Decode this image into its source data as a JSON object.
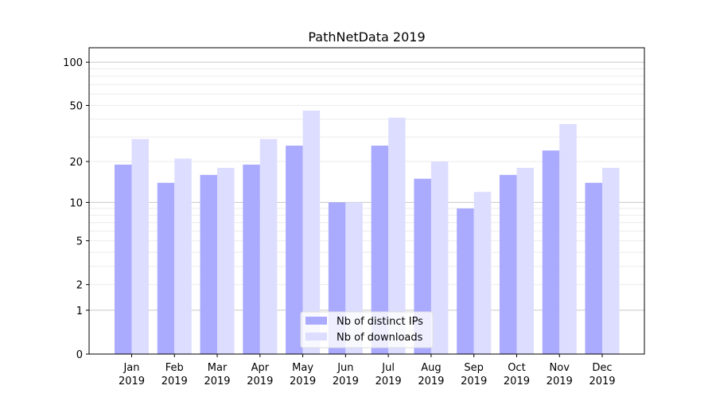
{
  "chart_data": {
    "type": "bar",
    "title": "PathNetData 2019",
    "xlabel": "",
    "ylabel": "",
    "yscale": "log(1+y)",
    "ylim": [
      0,
      126
    ],
    "yticks": [
      0,
      1,
      2,
      5,
      10,
      20,
      50,
      100
    ],
    "grid": true,
    "legend_position": "lower center",
    "categories": [
      "Jan\n2019",
      "Feb\n2019",
      "Mar\n2019",
      "Apr\n2019",
      "May\n2019",
      "Jun\n2019",
      "Jul\n2019",
      "Aug\n2019",
      "Sep\n2019",
      "Oct\n2019",
      "Nov\n2019",
      "Dec\n2019"
    ],
    "series": [
      {
        "name": "Nb of distinct IPs",
        "color": "#aaaaff",
        "values": [
          19,
          14,
          16,
          19,
          26,
          10,
          26,
          15,
          9,
          16,
          24,
          14
        ]
      },
      {
        "name": "Nb of downloads",
        "color": "#ddddff",
        "values": [
          29,
          21,
          18,
          29,
          46,
          10,
          41,
          20,
          12,
          18,
          37,
          18
        ]
      }
    ]
  }
}
